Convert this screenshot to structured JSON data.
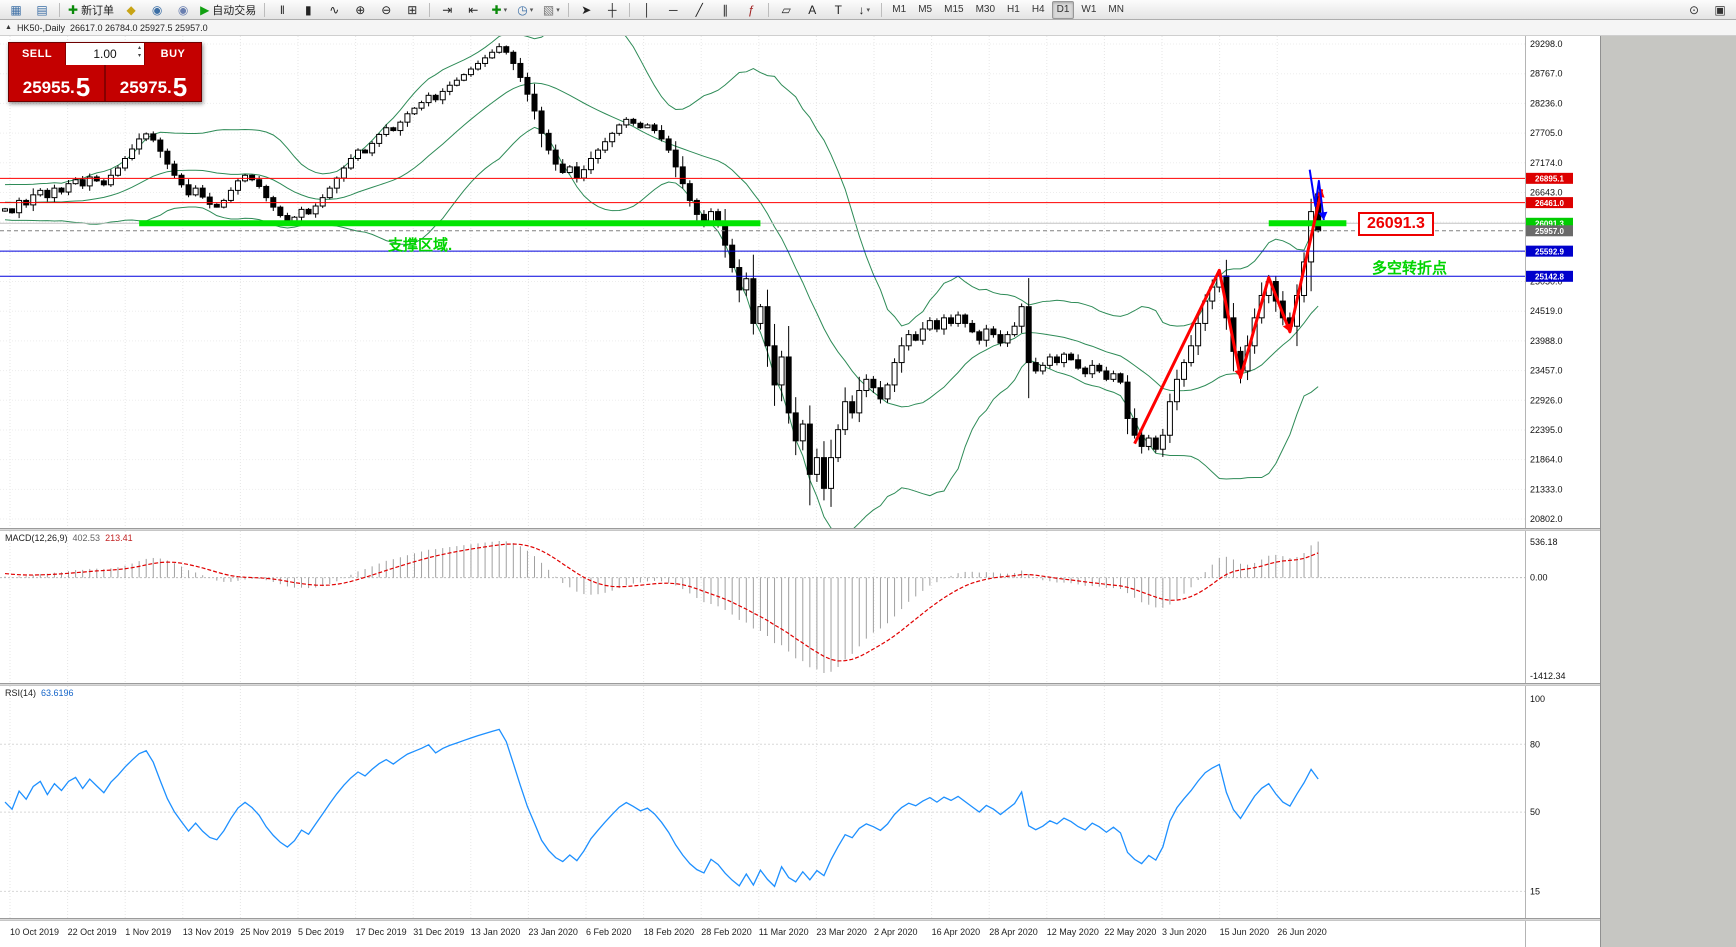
{
  "toolbar": {
    "items": [
      {
        "name": "new-chart-icon",
        "glyph": "▦",
        "color": "#3b6ea5"
      },
      {
        "name": "profiles-icon",
        "glyph": "▤",
        "color": "#3b6ea5"
      },
      {
        "sep": true
      },
      {
        "name": "new-order-button",
        "glyph": "✚",
        "color": "#0a8a0a",
        "label": "新订单"
      },
      {
        "name": "metaeditor-icon",
        "glyph": "◆",
        "color": "#c8a415"
      },
      {
        "name": "history-center-icon",
        "glyph": "◉",
        "color": "#3b6ea5"
      },
      {
        "name": "global-settings-icon",
        "glyph": "◉",
        "color": "#6a7fb0"
      },
      {
        "name": "autotrading-button",
        "glyph": "▶",
        "color": "#12a112",
        "label": "自动交易"
      },
      {
        "sep": true
      },
      {
        "name": "bar-chart-icon",
        "glyph": "‖",
        "color": "#222222"
      },
      {
        "name": "candlestick-chart-icon",
        "glyph": "▮",
        "color": "#222222"
      },
      {
        "name": "line-chart-icon",
        "glyph": "∿",
        "color": "#222222"
      },
      {
        "name": "zoom-in-icon",
        "glyph": "⊕",
        "color": "#222222"
      },
      {
        "name": "zoom-out-icon",
        "glyph": "⊖",
        "color": "#222222"
      },
      {
        "name": "tile-windows-icon",
        "glyph": "⊞",
        "color": "#222222"
      },
      {
        "sep": true
      },
      {
        "name": "auto-scroll-icon",
        "glyph": "⇥",
        "color": "#222222"
      },
      {
        "name": "chart-shift-icon",
        "glyph": "⇤",
        "color": "#222222"
      },
      {
        "name": "indicators-icon",
        "glyph": "✚",
        "color": "#0a8a0a",
        "dropdown": true
      },
      {
        "name": "periods-icon",
        "glyph": "◷",
        "color": "#3b6ea5",
        "dropdown": true
      },
      {
        "name": "templates-icon",
        "glyph": "▧",
        "color": "#777777",
        "dropdown": true
      },
      {
        "sep": true
      },
      {
        "name": "cursor-icon",
        "glyph": "➤",
        "color": "#222222"
      },
      {
        "name": "crosshair-icon",
        "glyph": "┼",
        "color": "#222222"
      },
      {
        "sep": true
      },
      {
        "name": "vertical-line-icon",
        "glyph": "│",
        "color": "#222222"
      },
      {
        "name": "horizontal-line-icon",
        "glyph": "─",
        "color": "#222222"
      },
      {
        "name": "trendline-icon",
        "glyph": "╱",
        "color": "#222222"
      },
      {
        "name": "channel-icon",
        "glyph": "∥",
        "color": "#222222"
      },
      {
        "name": "fibonacci-icon",
        "glyph": "ƒ",
        "color": "#a22222"
      },
      {
        "sep": true
      },
      {
        "name": "shapes-icon",
        "glyph": "▱",
        "color": "#222222"
      },
      {
        "name": "text-icon",
        "glyph": "A",
        "color": "#222222"
      },
      {
        "name": "text-label-icon",
        "glyph": "T",
        "color": "#222222"
      },
      {
        "name": "arrows-icon",
        "glyph": "↓",
        "color": "#222222",
        "dropdown": true
      },
      {
        "sep": true
      }
    ],
    "timeframes": {
      "items": [
        "M1",
        "M5",
        "M15",
        "M30",
        "H1",
        "H4",
        "D1",
        "W1",
        "MN"
      ],
      "active": "D1"
    },
    "right_items": [
      {
        "name": "search-icon",
        "glyph": "⊙"
      },
      {
        "name": "pin-chart-icon",
        "glyph": "▣"
      }
    ]
  },
  "titlebar": {
    "marker": "▲",
    "symbol_text": "HK50-,Daily",
    "ohlc": "26617.0 26784.0 25927.5 25957.0"
  },
  "quote_panel": {
    "sell_label": "SELL",
    "buy_label": "BUY",
    "lot": "1.00",
    "spinner_up": "▴",
    "spinner_down": "▾",
    "sell_int": "25955.",
    "sell_big": "5",
    "buy_int": "25975.",
    "buy_big": "5"
  },
  "annotations": {
    "support_zone": "支撑区域.",
    "pivot_point": "多空转折点",
    "price_callout": "26091.3"
  },
  "indicator_labels": {
    "macd_name": "MACD(12,26,9)",
    "macd_value": "402.53",
    "macd_signal": "213.41",
    "rsi_name": "RSI(14)",
    "rsi_value": "63.6196"
  },
  "chart_data": {
    "type": "candlestick",
    "symbol": "HK50-",
    "period": "Daily",
    "current_bar": {
      "open": 26617.0,
      "high": 26784.0,
      "low": 25927.5,
      "close": 25957.0
    },
    "price_axis": {
      "top_value": 29298,
      "bottom_value": 20802,
      "labels": [
        "29298.0",
        "28767.0",
        "28236.0",
        "27705.0",
        "27174.0",
        "26643.0",
        "26112.0",
        "25581.0",
        "25050.0",
        "24519.0",
        "23988.0",
        "23457.0",
        "22926.0",
        "22395.0",
        "21864.0",
        "21333.0",
        "20802.0"
      ]
    },
    "dates": [
      "10 Oct 2019",
      "22 Oct 2019",
      "1 Nov 2019",
      "13 Nov 2019",
      "25 Nov 2019",
      "5 Dec 2019",
      "17 Dec 2019",
      "31 Dec 2019",
      "13 Jan 2020",
      "23 Jan 2020",
      "6 Feb 2020",
      "18 Feb 2020",
      "28 Feb 2020",
      "11 Mar 2020",
      "23 Mar 2020",
      "2 Apr 2020",
      "16 Apr 2020",
      "28 Apr 2020",
      "12 May 2020",
      "22 May 2020",
      "3 Jun 2020",
      "15 Jun 2020",
      "26 Jun 2020"
    ],
    "candles": {
      "warmup": 26,
      "closes": [
        26000,
        26120,
        26240,
        26180,
        26320,
        26260,
        26410,
        26350,
        26500,
        26440,
        26560,
        26610,
        26500,
        26650,
        26700,
        26600,
        26740,
        26650,
        26550,
        26450,
        26360,
        26260,
        26310,
        26210,
        26260,
        26310,
        26350,
        26280,
        26500,
        26420,
        26600,
        26680,
        26550,
        26720,
        26650,
        26800,
        26870,
        26760,
        26920,
        26850,
        26780,
        26950,
        27080,
        27250,
        27420,
        27600,
        27690,
        27580,
        27380,
        27150,
        26950,
        26780,
        26600,
        26720,
        26560,
        26430,
        26380,
        26500,
        26680,
        26850,
        26950,
        26870,
        26750,
        26550,
        26380,
        26230,
        26120,
        26200,
        26340,
        26260,
        26400,
        26550,
        26720,
        26900,
        27080,
        27250,
        27400,
        27350,
        27520,
        27680,
        27800,
        27750,
        27900,
        28050,
        28150,
        28250,
        28380,
        28300,
        28450,
        28560,
        28650,
        28750,
        28850,
        28950,
        29050,
        29150,
        29250,
        29150,
        28950,
        28700,
        28400,
        28100,
        27700,
        27400,
        27150,
        27000,
        27100,
        26900,
        27050,
        27250,
        27400,
        27550,
        27700,
        27850,
        27950,
        27880,
        27800,
        27850,
        27750,
        27600,
        27400,
        27100,
        26800,
        26500,
        26250,
        26100,
        26300,
        26100,
        25700,
        25300,
        24900,
        25100,
        24300,
        24600,
        23900,
        23200,
        23700,
        22700,
        22200,
        22500,
        21600,
        21900,
        21350,
        21900,
        22400,
        22900,
        22700,
        23100,
        23300,
        23150,
        22950,
        23200,
        23600,
        23900,
        24100,
        24000,
        24200,
        24350,
        24200,
        24400,
        24300,
        24450,
        24300,
        24150,
        24000,
        24200,
        24100,
        23950,
        24100,
        24250,
        24600,
        23600,
        23450,
        23550,
        23700,
        23600,
        23750,
        23650,
        23500,
        23400,
        23550,
        23450,
        23300,
        23400,
        23250,
        22600,
        22300,
        22100,
        22250,
        22050,
        22300,
        22900,
        23300,
        23600,
        23900,
        24300,
        24700,
        24950,
        25150,
        24400,
        23800,
        23450,
        23900,
        24400,
        24800,
        25050,
        24700,
        24400,
        24250,
        24800,
        25400,
        26300,
        25957
      ]
    },
    "bollinger": {
      "period": 20,
      "deviation": 2,
      "color": "#2e8b57"
    },
    "macd": {
      "fast": 12,
      "slow": 26,
      "signal": 9,
      "axis_labels": [
        "536.18",
        "0.00",
        "-1412.34"
      ],
      "histogram_color": "#a0a0a0",
      "signal_color": "#e00000"
    },
    "rsi": {
      "period": 14,
      "axis_labels": [
        "100",
        "80",
        "50",
        "15"
      ],
      "color": "#1e90ff"
    },
    "hlines": [
      {
        "price": 26895.1,
        "color": "#ff0000",
        "width": 1,
        "badge": "26895.1",
        "badge_bg": "#dd0000"
      },
      {
        "price": 26461.0,
        "color": "#ff0000",
        "width": 1,
        "badge": "26461.0",
        "badge_bg": "#dd0000"
      },
      {
        "price": 26091.3,
        "color": "#c4c4c4",
        "width": 1,
        "badge": "26091.3",
        "badge_bg": "#00cc00"
      },
      {
        "price": 25957.0,
        "color": "#808080",
        "width": 1,
        "dash": "4,3",
        "badge": "25957.0",
        "badge_bg": "#6a6a6a"
      },
      {
        "price": 25592.9,
        "color": "#0000dd",
        "width": 1,
        "badge": "25592.9",
        "badge_bg": "#0000cc"
      },
      {
        "price": 25142.8,
        "color": "#0000dd",
        "width": 1,
        "badge": "25142.8",
        "badge_bg": "#0000cc"
      }
    ],
    "support_segments": [
      {
        "price": 26091.3,
        "from": 19,
        "to": 107,
        "color": "#00e400",
        "width": 6
      },
      {
        "price": 26091.3,
        "from": 179,
        "to": 190,
        "color": "#00e400",
        "width": 6
      }
    ],
    "trendlines": {
      "red": {
        "color": "#ff0000",
        "width": 3,
        "points": [
          [
            160,
            22150
          ],
          [
            172,
            25250
          ],
          [
            175,
            23330
          ],
          [
            179,
            25120
          ],
          [
            182,
            24150
          ],
          [
            186.5,
            26700
          ]
        ],
        "arrows": [
          2,
          4,
          5
        ]
      },
      "blue": {
        "color": "#0000ff",
        "width": 2,
        "points": [
          [
            184.8,
            27050
          ],
          [
            185.6,
            26400
          ],
          [
            186.1,
            26850
          ],
          [
            186.8,
            26150
          ]
        ],
        "arrows": [
          3
        ]
      }
    }
  }
}
